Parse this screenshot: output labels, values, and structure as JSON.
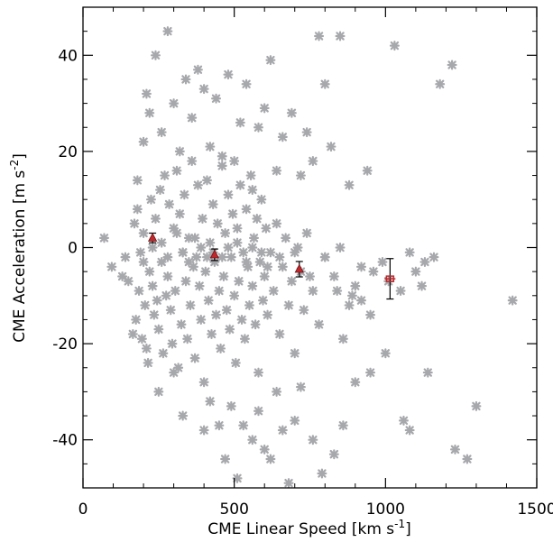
{
  "chart_data": {
    "type": "scatter",
    "xlabel": "CME Linear Speed [km s",
    "xlabel_sup": "-1",
    "xlabel_end": "]",
    "ylabel": "CME Acceleration [m s",
    "ylabel_sup": "-2",
    "ylabel_end": "]",
    "xlim": [
      0,
      1500
    ],
    "ylim": [
      -50,
      50
    ],
    "xticks": [
      0,
      500,
      1000,
      1500
    ],
    "yticks": [
      -40,
      -20,
      0,
      20,
      40
    ],
    "grid": false,
    "colors": {
      "scatter": "#a7a8ac",
      "mean": "#c0282c",
      "errorbar": "#000000"
    },
    "series": [
      {
        "marker": "x",
        "points": [
          [
            70,
            2
          ],
          [
            95,
            -4
          ],
          [
            130,
            -6
          ],
          [
            140,
            -2
          ],
          [
            150,
            -7
          ],
          [
            165,
            -18
          ],
          [
            170,
            5
          ],
          [
            175,
            -15
          ],
          [
            180,
            8
          ],
          [
            185,
            -9
          ],
          [
            190,
            -1
          ],
          [
            195,
            -19
          ],
          [
            200,
            3
          ],
          [
            205,
            -12
          ],
          [
            210,
            -21
          ],
          [
            215,
            -24
          ],
          [
            220,
            -5
          ],
          [
            225,
            10
          ],
          [
            230,
            -8
          ],
          [
            235,
            -14
          ],
          [
            240,
            6
          ],
          [
            245,
            -11
          ],
          [
            250,
            -17
          ],
          [
            255,
            12
          ],
          [
            260,
            -3
          ],
          [
            265,
            -22
          ],
          [
            270,
            15
          ],
          [
            275,
            -10
          ],
          [
            280,
            -6
          ],
          [
            285,
            9
          ],
          [
            290,
            -13
          ],
          [
            295,
            -20
          ],
          [
            300,
            4
          ],
          [
            305,
            -9
          ],
          [
            310,
            16
          ],
          [
            315,
            -25
          ],
          [
            320,
            7
          ],
          [
            325,
            -16
          ],
          [
            330,
            -1
          ],
          [
            335,
            11
          ],
          [
            340,
            -7
          ],
          [
            345,
            -19
          ],
          [
            350,
            2
          ],
          [
            355,
            -12
          ],
          [
            360,
            18
          ],
          [
            365,
            -4
          ],
          [
            370,
            -23
          ],
          [
            375,
            -2
          ],
          [
            380,
            13
          ],
          [
            385,
            -8
          ],
          [
            390,
            -15
          ],
          [
            395,
            6
          ],
          [
            400,
            -28
          ],
          [
            405,
            -5
          ],
          [
            410,
            14
          ],
          [
            415,
            -11
          ],
          [
            420,
            1
          ],
          [
            425,
            -18
          ],
          [
            430,
            9
          ],
          [
            435,
            -3
          ],
          [
            440,
            -14
          ],
          [
            445,
            5
          ],
          [
            450,
            -9
          ],
          [
            455,
            -21
          ],
          [
            460,
            17
          ],
          [
            465,
            -6
          ],
          [
            470,
            3
          ],
          [
            475,
            -13
          ],
          [
            480,
            11
          ],
          [
            485,
            -17
          ],
          [
            490,
            -2
          ],
          [
            495,
            7
          ],
          [
            500,
            -10
          ],
          [
            505,
            -24
          ],
          [
            510,
            4
          ],
          [
            515,
            -7
          ],
          [
            520,
            13
          ],
          [
            525,
            -15
          ],
          [
            530,
            -1
          ],
          [
            535,
            -19
          ],
          [
            540,
            8
          ],
          [
            545,
            -4
          ],
          [
            550,
            -12
          ],
          [
            555,
            15
          ],
          [
            560,
            -8
          ],
          [
            565,
            2
          ],
          [
            570,
            -16
          ],
          [
            575,
            6
          ],
          [
            580,
            -26
          ],
          [
            585,
            -3
          ],
          [
            590,
            10
          ],
          [
            595,
            -11
          ],
          [
            600,
            -6
          ],
          [
            605,
            4
          ],
          [
            610,
            -14
          ],
          [
            620,
            -1
          ],
          [
            630,
            -9
          ],
          [
            640,
            5
          ],
          [
            650,
            -18
          ],
          [
            660,
            -4
          ],
          [
            670,
            2
          ],
          [
            680,
            -12
          ],
          [
            690,
            -7
          ],
          [
            700,
            -22
          ],
          [
            710,
            0
          ],
          [
            720,
            -5
          ],
          [
            730,
            -13
          ],
          [
            740,
            3
          ],
          [
            760,
            -9
          ],
          [
            780,
            -16
          ],
          [
            800,
            -2
          ],
          [
            830,
            -6
          ],
          [
            860,
            -19
          ],
          [
            890,
            -10
          ],
          [
            920,
            -4
          ],
          [
            950,
            -14
          ],
          [
            180,
            14
          ],
          [
            200,
            22
          ],
          [
            210,
            32
          ],
          [
            220,
            28
          ],
          [
            240,
            40
          ],
          [
            260,
            24
          ],
          [
            280,
            45
          ],
          [
            300,
            30
          ],
          [
            320,
            20
          ],
          [
            340,
            35
          ],
          [
            360,
            27
          ],
          [
            380,
            37
          ],
          [
            400,
            33
          ],
          [
            420,
            21
          ],
          [
            440,
            31
          ],
          [
            460,
            19
          ],
          [
            480,
            36
          ],
          [
            500,
            18
          ],
          [
            520,
            26
          ],
          [
            540,
            34
          ],
          [
            560,
            12
          ],
          [
            580,
            25
          ],
          [
            600,
            29
          ],
          [
            620,
            39
          ],
          [
            640,
            16
          ],
          [
            660,
            23
          ],
          [
            690,
            28
          ],
          [
            720,
            15
          ],
          [
            740,
            24
          ],
          [
            760,
            18
          ],
          [
            780,
            44
          ],
          [
            800,
            34
          ],
          [
            820,
            21
          ],
          [
            850,
            44
          ],
          [
            880,
            13
          ],
          [
            940,
            16
          ],
          [
            1030,
            42
          ],
          [
            1180,
            34
          ],
          [
            1220,
            38
          ],
          [
            250,
            -30
          ],
          [
            300,
            -26
          ],
          [
            330,
            -35
          ],
          [
            400,
            -38
          ],
          [
            420,
            -32
          ],
          [
            450,
            -37
          ],
          [
            470,
            -44
          ],
          [
            490,
            -33
          ],
          [
            510,
            -48
          ],
          [
            530,
            -37
          ],
          [
            560,
            -40
          ],
          [
            580,
            -34
          ],
          [
            600,
            -42
          ],
          [
            620,
            -44
          ],
          [
            640,
            -30
          ],
          [
            660,
            -38
          ],
          [
            680,
            -49
          ],
          [
            700,
            -36
          ],
          [
            720,
            -29
          ],
          [
            760,
            -40
          ],
          [
            790,
            -47
          ],
          [
            830,
            -43
          ],
          [
            860,
            -37
          ],
          [
            900,
            -28
          ],
          [
            950,
            -26
          ],
          [
            1000,
            -22
          ],
          [
            1060,
            -36
          ],
          [
            1080,
            -38
          ],
          [
            1140,
            -26
          ],
          [
            1230,
            -42
          ],
          [
            1270,
            -44
          ],
          [
            1300,
            -33
          ],
          [
            1420,
            -11
          ],
          [
            200,
            -3
          ],
          [
            230,
            0
          ],
          [
            260,
            1
          ],
          [
            280,
            -2
          ],
          [
            310,
            3
          ],
          [
            330,
            -1
          ],
          [
            350,
            -3
          ],
          [
            370,
            2
          ],
          [
            390,
            0
          ],
          [
            410,
            -2
          ],
          [
            430,
            -1
          ],
          [
            460,
            -2
          ],
          [
            480,
            0
          ],
          [
            510,
            1
          ],
          [
            540,
            -3
          ],
          [
            560,
            0
          ],
          [
            590,
            -1
          ],
          [
            610,
            -4
          ],
          [
            650,
            -2
          ],
          [
            700,
            -1
          ],
          [
            750,
            -6
          ],
          [
            800,
            -2
          ],
          [
            850,
            0
          ],
          [
            900,
            -8
          ],
          [
            960,
            -5
          ],
          [
            990,
            -3
          ],
          [
            1010,
            -7
          ],
          [
            1050,
            -9
          ],
          [
            1080,
            -1
          ],
          [
            1100,
            -5
          ],
          [
            1130,
            -3
          ],
          [
            1160,
            -2
          ],
          [
            1120,
            -8
          ],
          [
            920,
            -11
          ],
          [
            880,
            -12
          ],
          [
            840,
            -9
          ]
        ]
      }
    ],
    "means": [
      {
        "x": 230,
        "y": 2,
        "err": 1.0
      },
      {
        "x": 435,
        "y": -1.5,
        "err": 1.2
      },
      {
        "x": 715,
        "y": -4.5,
        "err": 1.6
      },
      {
        "x": 1015,
        "y": -6.5,
        "err": 4.2
      }
    ]
  }
}
